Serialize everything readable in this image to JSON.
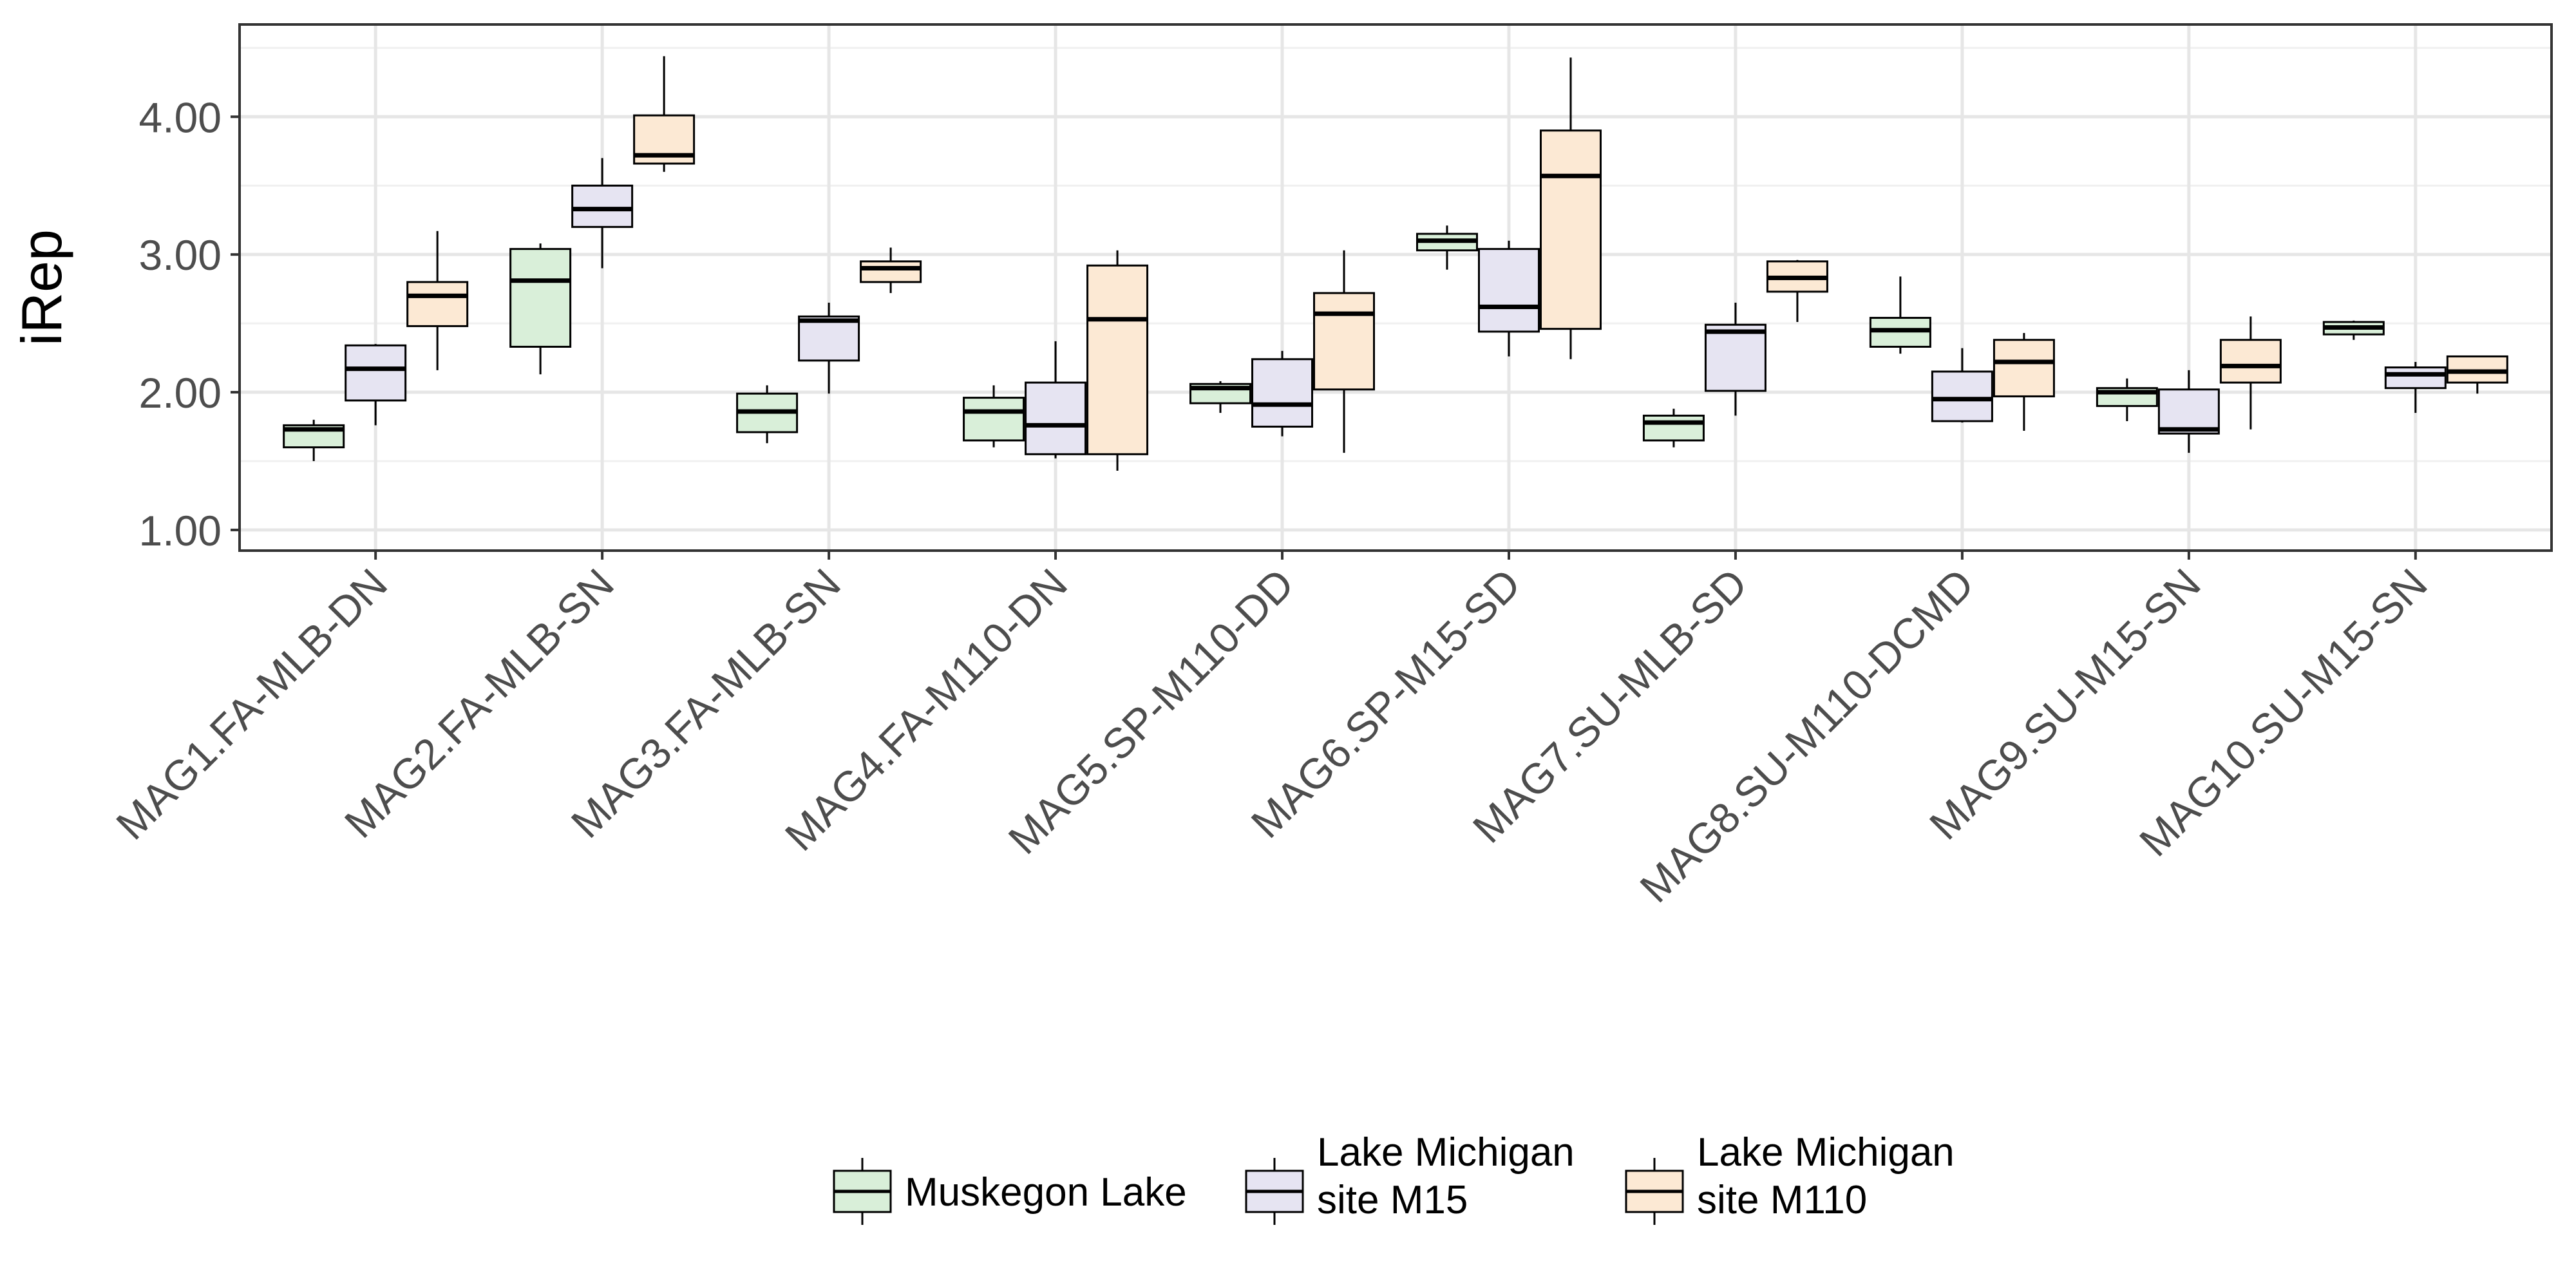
{
  "chart_data": {
    "type": "boxplot",
    "title": "",
    "xlabel": "",
    "ylabel": "iRep",
    "ylim": [
      0.85,
      4.67
    ],
    "yticks": [
      "1.00",
      "2.00",
      "3.00",
      "4.00"
    ],
    "grid": true,
    "legend_position": "bottom",
    "categories": [
      "MAG1.FA-MLB-DN",
      "MAG2.FA-MLB-SN",
      "MAG3.FA-MLB-SN",
      "MAG4.FA-M110-DN",
      "MAG5.SP-M110-DD",
      "MAG6.SP-M15-SD",
      "MAG7.SU-MLB-SD",
      "MAG8.SU-M110-DCMD",
      "MAG9.SU-M15-SN",
      "MAG10.SU-M15-SN"
    ],
    "series": [
      {
        "name": "Muskegon Lake",
        "legend_lines": [
          "Muskegon Lake"
        ],
        "fill": "#d9efd9",
        "boxes": [
          {
            "min": 1.5,
            "q1": 1.6,
            "median": 1.73,
            "q3": 1.76,
            "max": 1.8
          },
          {
            "min": 2.13,
            "q1": 2.33,
            "median": 2.81,
            "q3": 3.04,
            "max": 3.08
          },
          {
            "min": 1.63,
            "q1": 1.71,
            "median": 1.86,
            "q3": 1.99,
            "max": 2.05
          },
          {
            "min": 1.6,
            "q1": 1.65,
            "median": 1.86,
            "q3": 1.96,
            "max": 2.05
          },
          {
            "min": 1.85,
            "q1": 1.92,
            "median": 2.03,
            "q3": 2.06,
            "max": 2.08
          },
          {
            "min": 2.89,
            "q1": 3.03,
            "median": 3.1,
            "q3": 3.15,
            "max": 3.21
          },
          {
            "min": 1.6,
            "q1": 1.65,
            "median": 1.78,
            "q3": 1.83,
            "max": 1.88
          },
          {
            "min": 2.28,
            "q1": 2.33,
            "median": 2.45,
            "q3": 2.54,
            "max": 2.84
          },
          {
            "min": 1.79,
            "q1": 1.9,
            "median": 2.0,
            "q3": 2.03,
            "max": 2.1
          },
          {
            "min": 2.38,
            "q1": 2.42,
            "median": 2.47,
            "q3": 2.51,
            "max": 2.52
          }
        ]
      },
      {
        "name": "Lake Michigan site M15",
        "legend_lines": [
          "Lake Michigan",
          "site M15"
        ],
        "fill": "#e6e4f2",
        "boxes": [
          {
            "min": 1.76,
            "q1": 1.94,
            "median": 2.17,
            "q3": 2.34,
            "max": 2.35
          },
          {
            "min": 2.9,
            "q1": 3.2,
            "median": 3.33,
            "q3": 3.5,
            "max": 3.7
          },
          {
            "min": 1.99,
            "q1": 2.23,
            "median": 2.52,
            "q3": 2.55,
            "max": 2.65
          },
          {
            "min": 1.52,
            "q1": 1.55,
            "median": 1.76,
            "q3": 2.07,
            "max": 2.37
          },
          {
            "min": 1.68,
            "q1": 1.75,
            "median": 1.91,
            "q3": 2.24,
            "max": 2.3
          },
          {
            "min": 2.26,
            "q1": 2.44,
            "median": 2.62,
            "q3": 3.04,
            "max": 3.1
          },
          {
            "min": 1.83,
            "q1": 2.01,
            "median": 2.44,
            "q3": 2.49,
            "max": 2.65
          },
          {
            "min": 1.78,
            "q1": 1.79,
            "median": 1.95,
            "q3": 2.15,
            "max": 2.32
          },
          {
            "min": 1.56,
            "q1": 1.7,
            "median": 1.73,
            "q3": 2.02,
            "max": 2.16
          },
          {
            "min": 1.85,
            "q1": 2.03,
            "median": 2.13,
            "q3": 2.18,
            "max": 2.22
          }
        ]
      },
      {
        "name": "Lake Michigan site M110",
        "legend_lines": [
          "Lake Michigan",
          "site M110"
        ],
        "fill": "#fce9d4",
        "boxes": [
          {
            "min": 2.16,
            "q1": 2.48,
            "median": 2.7,
            "q3": 2.8,
            "max": 3.17
          },
          {
            "min": 3.6,
            "q1": 3.66,
            "median": 3.72,
            "q3": 4.01,
            "max": 4.44
          },
          {
            "min": 2.72,
            "q1": 2.8,
            "median": 2.9,
            "q3": 2.95,
            "max": 3.05
          },
          {
            "min": 1.43,
            "q1": 1.55,
            "median": 2.53,
            "q3": 2.92,
            "max": 3.03
          },
          {
            "min": 1.56,
            "q1": 2.02,
            "median": 2.57,
            "q3": 2.72,
            "max": 3.03
          },
          {
            "min": 2.24,
            "q1": 2.46,
            "median": 3.57,
            "q3": 3.9,
            "max": 4.43
          },
          {
            "min": 2.51,
            "q1": 2.73,
            "median": 2.83,
            "q3": 2.95,
            "max": 2.96
          },
          {
            "min": 1.72,
            "q1": 1.97,
            "median": 2.22,
            "q3": 2.38,
            "max": 2.43
          },
          {
            "min": 1.73,
            "q1": 2.07,
            "median": 2.19,
            "q3": 2.38,
            "max": 2.55
          },
          {
            "min": 1.99,
            "q1": 2.07,
            "median": 2.15,
            "q3": 2.26,
            "max": 2.26
          }
        ]
      }
    ]
  }
}
